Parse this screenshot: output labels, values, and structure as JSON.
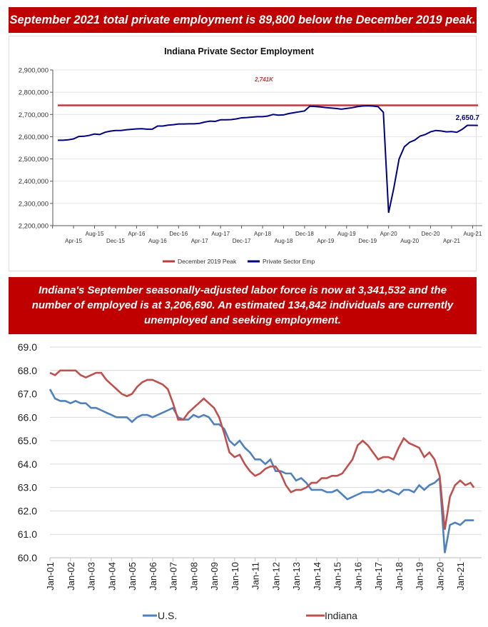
{
  "banners": {
    "top": "September 2021 total private employment is 89,800 below the December 2019 peak.",
    "middle": "Indiana's September seasonally-adjusted labor force is now at 3,341,532 and the number of employed is at 3,206,690. An estimated 134,842 individuals are currently unemployed and seeking employment.",
    "color": "#c00000"
  },
  "chart_data": [
    {
      "type": "line",
      "title": "Indiana Private Sector Employment",
      "ylim": [
        2200000,
        2900000
      ],
      "yticks": [
        "2,200,000",
        "2,300,000",
        "2,400,000",
        "2,500,000",
        "2,600,000",
        "2,700,000",
        "2,800,000",
        "2,900,000"
      ],
      "xticks_lower": [
        "Apr-15",
        "Dec-15",
        "Aug-16",
        "Apr-17",
        "Dec-17",
        "Aug-18",
        "Apr-19",
        "Dec-19",
        "Aug-20",
        "Apr-21"
      ],
      "xticks_upper": [
        "Aug-15",
        "Apr-16",
        "Dec-16",
        "Aug-17",
        "Apr-18",
        "Dec-18",
        "Aug-19",
        "Apr-20",
        "Dec-20",
        "Aug-21"
      ],
      "grid": true,
      "legend": "bottom",
      "start_month": "Jan-15",
      "frequency": "monthly",
      "series": [
        {
          "name": "December 2019 Peak",
          "color": "#c0393b",
          "constant": 2741000,
          "annotation": "2,741K"
        },
        {
          "name": "Private Sector Emp",
          "color": "#000080",
          "end_label": "2,650.7",
          "values_thousands": [
            2584,
            2584,
            2586,
            2590,
            2601,
            2602,
            2606,
            2612,
            2610,
            2620,
            2625,
            2628,
            2628,
            2631,
            2633,
            2635,
            2636,
            2634,
            2634,
            2648,
            2648,
            2652,
            2654,
            2657,
            2657,
            2658,
            2658,
            2660,
            2666,
            2670,
            2669,
            2676,
            2676,
            2677,
            2680,
            2685,
            2686,
            2688,
            2690,
            2690,
            2693,
            2700,
            2697,
            2698,
            2704,
            2708,
            2712,
            2716,
            2737,
            2736,
            2734,
            2731,
            2729,
            2727,
            2724,
            2727,
            2730,
            2735,
            2738,
            2739,
            2738,
            2735,
            2710,
            2258,
            2370,
            2500,
            2555,
            2575,
            2585,
            2603,
            2610,
            2622,
            2628,
            2626,
            2622,
            2623,
            2620,
            2633,
            2651,
            2651,
            2650.7
          ]
        }
      ]
    },
    {
      "type": "line",
      "ylim": [
        60.0,
        69.0
      ],
      "yticks": [
        "60.0",
        "61.0",
        "62.0",
        "63.0",
        "64.0",
        "65.0",
        "66.0",
        "67.0",
        "68.0",
        "69.0"
      ],
      "xticks": [
        "Jan-01",
        "Jan-02",
        "Jan-03",
        "Jan-04",
        "Jan-05",
        "Jan-06",
        "Jan-07",
        "Jan-08",
        "Jan-09",
        "Jan-10",
        "Jan-11",
        "Jan-12",
        "Jan-13",
        "Jan-14",
        "Jan-15",
        "Jan-16",
        "Jan-17",
        "Jan-18",
        "Jan-19",
        "Jan-20",
        "Jan-21"
      ],
      "grid": true,
      "legend": "bottom",
      "x_first": "Jan-01",
      "frequency": "quarterly, last point Sep-21",
      "series": [
        {
          "name": "U.S.",
          "color": "#4f81bd",
          "values": [
            67.2,
            66.8,
            66.7,
            66.7,
            66.6,
            66.7,
            66.6,
            66.6,
            66.4,
            66.4,
            66.3,
            66.2,
            66.1,
            66.0,
            66.0,
            66.0,
            65.8,
            66.0,
            66.1,
            66.1,
            66.0,
            66.1,
            66.2,
            66.3,
            66.4,
            66.0,
            65.9,
            65.9,
            66.1,
            66.0,
            66.1,
            66.0,
            65.7,
            65.7,
            65.5,
            65.0,
            64.8,
            65.0,
            64.7,
            64.5,
            64.2,
            64.2,
            64.0,
            64.2,
            63.7,
            63.7,
            63.6,
            63.6,
            63.3,
            63.4,
            63.2,
            62.9,
            62.9,
            62.9,
            62.8,
            62.8,
            62.9,
            62.7,
            62.5,
            62.6,
            62.7,
            62.8,
            62.8,
            62.8,
            62.9,
            62.8,
            62.9,
            62.8,
            62.7,
            62.9,
            62.9,
            62.8,
            63.1,
            62.9,
            63.1,
            63.2,
            63.4,
            60.2,
            61.4,
            61.5,
            61.4,
            61.6,
            61.6,
            61.6
          ]
        },
        {
          "name": "Indiana",
          "color": "#c0504d",
          "values": [
            67.9,
            67.8,
            68.0,
            68.0,
            68.0,
            68.0,
            67.8,
            67.7,
            67.8,
            67.9,
            67.9,
            67.6,
            67.4,
            67.2,
            67.0,
            66.9,
            67.0,
            67.3,
            67.5,
            67.6,
            67.6,
            67.5,
            67.4,
            67.2,
            66.6,
            65.9,
            65.9,
            66.2,
            66.4,
            66.6,
            66.8,
            66.6,
            66.4,
            66.0,
            65.3,
            64.5,
            64.3,
            64.4,
            64.0,
            63.7,
            63.5,
            63.6,
            63.8,
            63.9,
            63.9,
            63.6,
            63.1,
            62.8,
            62.9,
            62.9,
            63.0,
            63.2,
            63.2,
            63.4,
            63.4,
            63.5,
            63.5,
            63.6,
            63.9,
            64.2,
            64.8,
            65.0,
            64.8,
            64.5,
            64.2,
            64.3,
            64.3,
            64.2,
            64.7,
            65.1,
            64.9,
            64.8,
            64.7,
            64.3,
            64.5,
            64.2,
            63.5,
            61.2,
            62.6,
            63.1,
            63.3,
            63.1,
            63.2,
            63.0
          ]
        }
      ]
    }
  ]
}
